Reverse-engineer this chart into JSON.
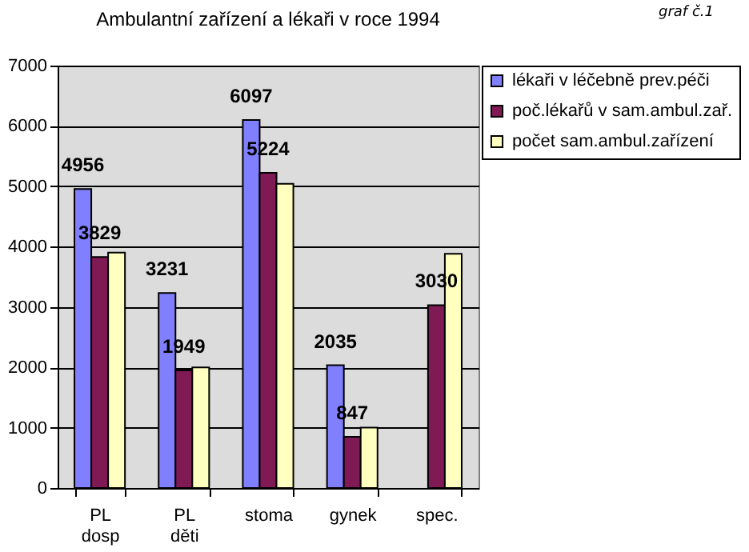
{
  "chart_data": {
    "type": "bar",
    "title": "Ambulantní zařízení a lékaři v roce 1994",
    "annotations": [
      "graf č.1"
    ],
    "categories": [
      "PL dosp",
      "PL děti",
      "stoma",
      "gynek",
      "spec."
    ],
    "series": [
      {
        "name": "lékaři v léčebně prev.péči",
        "color": "#8080ff",
        "values": [
          4956,
          3231,
          6097,
          2035,
          null
        ],
        "value_labels": [
          "4956",
          "3231",
          "6097",
          "2035",
          null
        ]
      },
      {
        "name": "poč.lékařů v sam.ambul.zař.",
        "color": "#7f1a55",
        "values": [
          3829,
          1949,
          5224,
          847,
          3030
        ],
        "value_labels": [
          "3829",
          "1949",
          "5224",
          "847",
          "3030"
        ]
      },
      {
        "name": "počet sam.ambul.zařízení",
        "color": "#ffffc0",
        "values": [
          3900,
          2000,
          5040,
          1000,
          3880
        ]
      }
    ],
    "ylim": [
      0,
      7000
    ],
    "yticks": [
      0,
      1000,
      2000,
      3000,
      4000,
      5000,
      6000,
      7000
    ],
    "grid": "y",
    "legend": "right"
  }
}
